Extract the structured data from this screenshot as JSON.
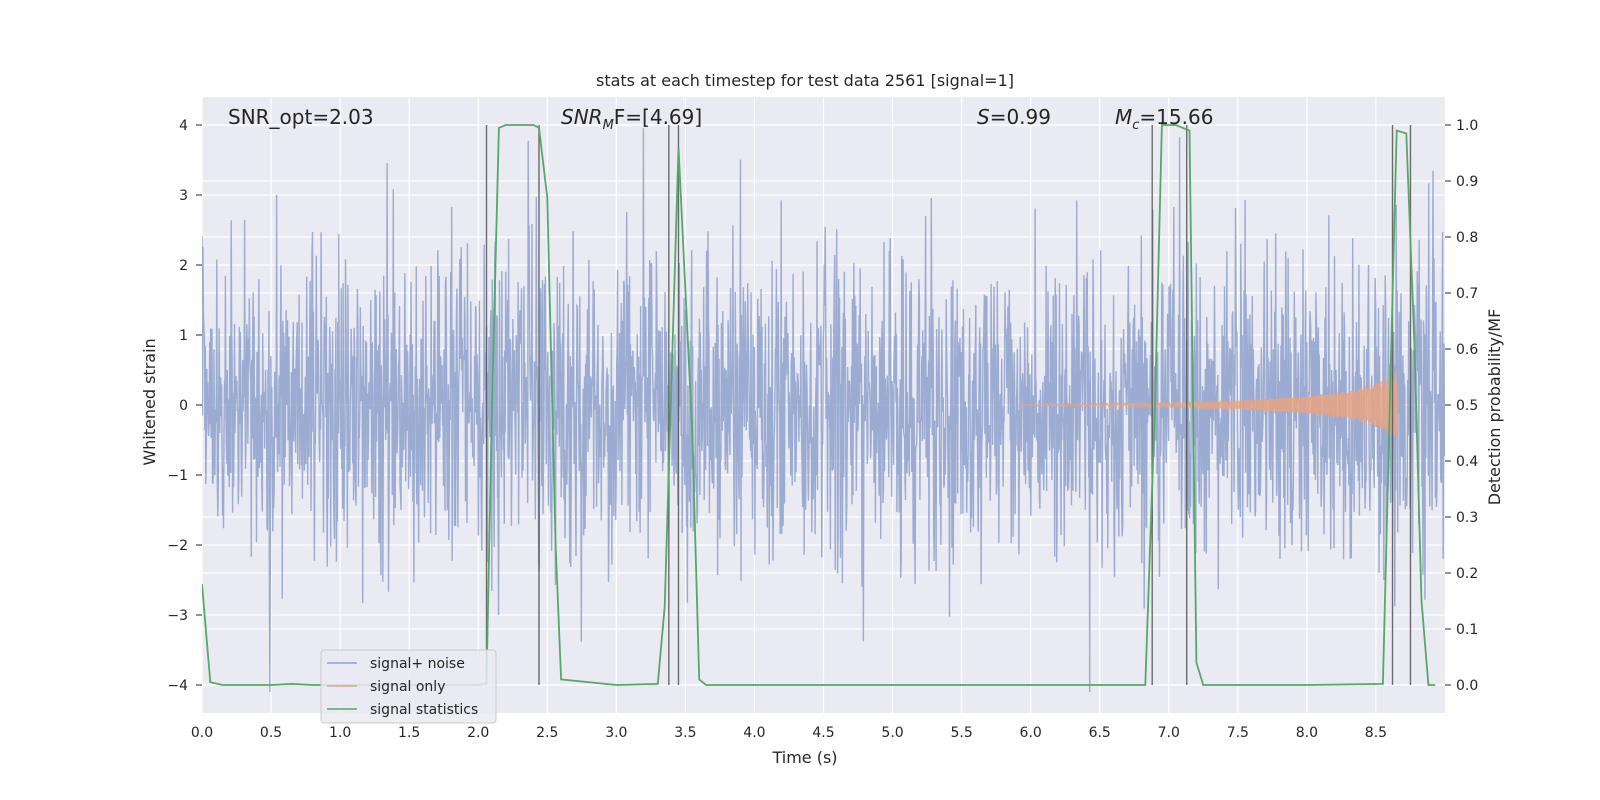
{
  "chart_data": {
    "type": "line",
    "title": "stats at each timestep for test data 2561 [signal=1]",
    "xlabel": "Time (s)",
    "ylabel": "Whitened strain",
    "y2label": "Detection probability/MF",
    "xlim": [
      0.0,
      9.0
    ],
    "ylim": [
      -4.4,
      4.4
    ],
    "y2lim": [
      -0.05,
      1.05
    ],
    "xticks": [
      "0.0",
      "0.5",
      "1.0",
      "1.5",
      "2.0",
      "2.5",
      "3.0",
      "3.5",
      "4.0",
      "4.5",
      "5.0",
      "5.5",
      "6.0",
      "6.5",
      "7.0",
      "7.5",
      "8.0",
      "8.5"
    ],
    "xtick_values": [
      0,
      0.5,
      1,
      1.5,
      2,
      2.5,
      3,
      3.5,
      4,
      4.5,
      5,
      5.5,
      6,
      6.5,
      7,
      7.5,
      8,
      8.5
    ],
    "yticks": [
      "−4",
      "−3",
      "−2",
      "−1",
      "0",
      "1",
      "2",
      "3",
      "4"
    ],
    "ytick_values": [
      -4,
      -3,
      -2,
      -1,
      0,
      1,
      2,
      3,
      4
    ],
    "y2ticks": [
      "0.0",
      "0.1",
      "0.2",
      "0.3",
      "0.4",
      "0.5",
      "0.6",
      "0.7",
      "0.8",
      "0.9",
      "1.0"
    ],
    "y2tick_values": [
      0,
      0.1,
      0.2,
      0.3,
      0.4,
      0.5,
      0.6,
      0.7,
      0.8,
      0.9,
      1.0
    ],
    "grid": true,
    "legend_position": "bottom-left",
    "annotations": {
      "snr_opt": "SNR_opt=2.03",
      "snr_mf_main": "SNR",
      "snr_mf_sub": "M",
      "snr_mf_rest": "F=[4.69]",
      "s_italic": "S",
      "s_rest": "=0.99",
      "mc_main": "M",
      "mc_sub": "c",
      "mc_rest": "=15.66"
    },
    "series": [
      {
        "name": "signal+ noise",
        "color": "#8da0cb",
        "description": "whitened strain, noise band roughly -2.5..2.5 with spikes to ~±4"
      },
      {
        "name": "signal only",
        "color": "#e8a482",
        "envelope": {
          "x": [
            6.0,
            7.0,
            7.5,
            8.0,
            8.3,
            8.5,
            8.6,
            8.65,
            8.66
          ],
          "amp": [
            0.01,
            0.03,
            0.06,
            0.12,
            0.2,
            0.3,
            0.42,
            0.5,
            0.0
          ]
        }
      },
      {
        "name": "signal statistics",
        "color": "#55a868",
        "axis": "right",
        "x": [
          0.0,
          0.06,
          0.15,
          0.5,
          0.65,
          0.8,
          1.0,
          1.5,
          2.0,
          2.06,
          2.1,
          2.15,
          2.2,
          2.3,
          2.4,
          2.44,
          2.5,
          2.56,
          2.6,
          3.0,
          3.3,
          3.35,
          3.45,
          3.55,
          3.6,
          3.65,
          4.0,
          5.0,
          6.0,
          6.5,
          6.83,
          6.9,
          6.95,
          7.05,
          7.1,
          7.15,
          7.2,
          7.25,
          7.5,
          8.0,
          8.55,
          8.6,
          8.65,
          8.72,
          8.78,
          8.83,
          8.88,
          8.93
        ],
        "y": [
          0.18,
          0.005,
          0.0,
          0.0,
          0.002,
          0.0,
          0.0,
          0.0,
          0.0,
          0.003,
          0.5,
          0.995,
          1.0,
          1.0,
          1.0,
          0.995,
          0.87,
          0.25,
          0.01,
          0.0,
          0.002,
          0.14,
          0.96,
          0.45,
          0.01,
          0.0,
          0.0,
          0.0,
          0.0,
          0.0,
          0.0,
          0.5,
          1.0,
          1.0,
          0.995,
          0.99,
          0.04,
          0.0,
          0.0,
          0.0,
          0.002,
          0.5,
          0.99,
          0.985,
          0.6,
          0.15,
          0.0,
          0.0
        ]
      }
    ],
    "vlines": [
      2.06,
      2.44,
      3.38,
      3.45,
      6.88,
      7.13,
      8.62,
      8.75
    ]
  }
}
